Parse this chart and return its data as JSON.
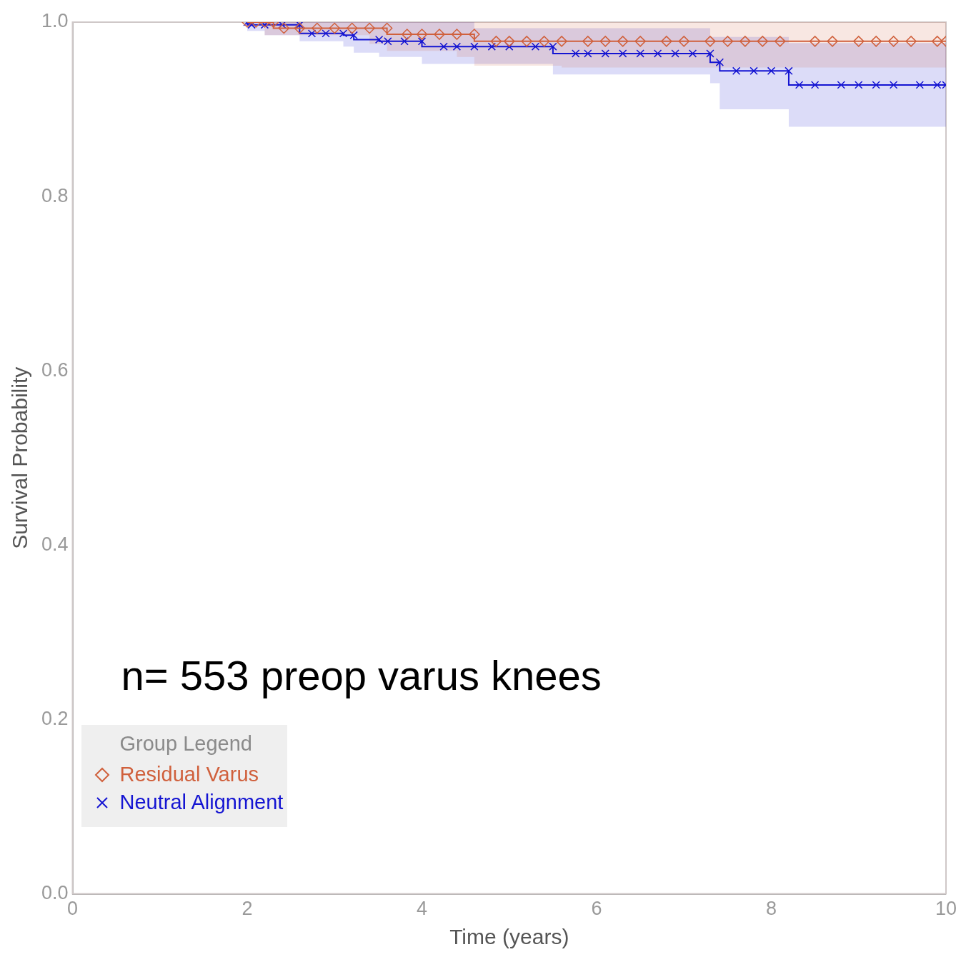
{
  "chart_data": {
    "type": "step",
    "xlabel": "Time (years)",
    "ylabel": "Survival Probability",
    "legend_title": "Group Legend",
    "legend": "bottom left",
    "grid": false,
    "xlim": [
      0,
      10
    ],
    "xticks": [
      0,
      2,
      4,
      6,
      8,
      10
    ],
    "ylim": [
      0,
      1
    ],
    "yticks": [
      {
        "value": 0,
        "label": "0.0"
      },
      0.2,
      0.4,
      0.6,
      0.8,
      {
        "value": 1,
        "label": "1.0"
      }
    ],
    "annotations": [
      "n= 553 preop varus knees"
    ],
    "series": [
      {
        "name": "Residual Varus",
        "color": "#d0603c",
        "marker": "diamond",
        "x": [
          2.0,
          2.1,
          2.2,
          2.3,
          2.42,
          2.6,
          2.8,
          3.0,
          3.2,
          3.4,
          3.6,
          3.83,
          4.0,
          4.2,
          4.4,
          4.6,
          4.85,
          5.0,
          5.2,
          5.4,
          5.6,
          5.9,
          6.1,
          6.3,
          6.5,
          6.8,
          7.0,
          7.3,
          7.5,
          7.7,
          7.9,
          8.1,
          8.5,
          8.7,
          9.0,
          9.2,
          9.4,
          9.6,
          9.9,
          10.0
        ],
        "values": [
          1.0,
          1.0,
          1.0,
          1.0,
          0.993,
          0.993,
          0.993,
          0.993,
          0.993,
          0.993,
          0.993,
          0.986,
          0.986,
          0.986,
          0.986,
          0.986,
          0.978,
          0.978,
          0.978,
          0.978,
          0.978,
          0.978,
          0.978,
          0.978,
          0.978,
          0.978,
          0.978,
          0.978,
          0.978,
          0.978,
          0.978,
          0.978,
          0.978,
          0.978,
          0.978,
          0.978,
          0.978,
          0.978,
          0.978,
          0.978
        ],
        "lower": [
          1.0,
          1.0,
          1.0,
          0.985,
          0.985,
          0.985,
          0.985,
          0.985,
          0.985,
          0.985,
          0.975,
          0.967,
          0.967,
          0.967,
          0.967,
          0.96,
          0.95,
          0.95,
          0.95,
          0.95,
          0.95,
          0.948,
          0.948,
          0.948,
          0.948,
          0.948,
          0.948,
          0.948,
          0.948,
          0.948,
          0.948,
          0.948,
          0.948,
          0.948,
          0.948,
          0.948,
          0.948,
          0.948,
          0.948,
          0.948
        ],
        "upper": [
          1.0,
          1.0,
          1.0,
          1.0,
          1.0,
          1.0,
          1.0,
          1.0,
          1.0,
          1.0,
          1.0,
          1.0,
          1.0,
          1.0,
          1.0,
          1.0,
          1.0,
          1.0,
          1.0,
          1.0,
          1.0,
          1.0,
          1.0,
          1.0,
          1.0,
          1.0,
          1.0,
          1.0,
          1.0,
          1.0,
          1.0,
          1.0,
          1.0,
          1.0,
          1.0,
          1.0,
          1.0,
          1.0,
          1.0,
          1.0
        ]
      },
      {
        "name": "Neutral Alignment",
        "color": "#1414d2",
        "marker": "cross",
        "x": [
          2.0,
          2.05,
          2.2,
          2.4,
          2.6,
          2.74,
          2.9,
          3.1,
          3.22,
          3.51,
          3.61,
          3.8,
          4.0,
          4.25,
          4.4,
          4.6,
          4.8,
          5.0,
          5.3,
          5.5,
          5.76,
          5.9,
          6.1,
          6.3,
          6.5,
          6.7,
          6.9,
          7.1,
          7.3,
          7.41,
          7.6,
          7.8,
          8.0,
          8.2,
          8.32,
          8.5,
          8.8,
          9.0,
          9.2,
          9.4,
          9.7,
          9.9,
          10.0
        ],
        "values": [
          1.0,
          0.997,
          0.997,
          0.997,
          0.997,
          0.987,
          0.987,
          0.987,
          0.985,
          0.98,
          0.978,
          0.978,
          0.978,
          0.972,
          0.972,
          0.972,
          0.972,
          0.972,
          0.972,
          0.972,
          0.964,
          0.964,
          0.964,
          0.964,
          0.964,
          0.964,
          0.964,
          0.964,
          0.964,
          0.954,
          0.944,
          0.944,
          0.944,
          0.944,
          0.928,
          0.928,
          0.928,
          0.928,
          0.928,
          0.928,
          0.928,
          0.928,
          0.928
        ],
        "lower": [
          1.0,
          0.99,
          0.99,
          0.985,
          0.985,
          0.978,
          0.978,
          0.978,
          0.972,
          0.965,
          0.96,
          0.96,
          0.96,
          0.952,
          0.952,
          0.952,
          0.952,
          0.952,
          0.952,
          0.952,
          0.94,
          0.94,
          0.94,
          0.94,
          0.94,
          0.94,
          0.94,
          0.94,
          0.94,
          0.93,
          0.9,
          0.9,
          0.9,
          0.9,
          0.88,
          0.88,
          0.88,
          0.88,
          0.88,
          0.88,
          0.88,
          0.88,
          0.88
        ],
        "upper": [
          1.0,
          1.0,
          1.0,
          1.0,
          1.0,
          1.0,
          1.0,
          1.0,
          1.0,
          1.0,
          1.0,
          1.0,
          1.0,
          1.0,
          1.0,
          1.0,
          0.993,
          0.993,
          0.993,
          0.993,
          0.993,
          0.993,
          0.993,
          0.993,
          0.993,
          0.993,
          0.993,
          0.993,
          0.993,
          0.983,
          0.983,
          0.983,
          0.983,
          0.983,
          0.976,
          0.976,
          0.976,
          0.976,
          0.976,
          0.976,
          0.976,
          0.976,
          0.976
        ]
      }
    ]
  }
}
